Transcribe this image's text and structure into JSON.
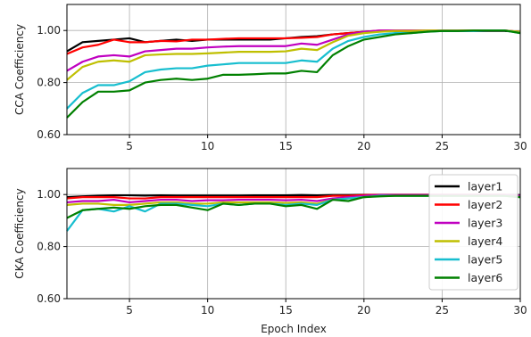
{
  "chart_data": [
    {
      "type": "line",
      "ylabel": "CCA Coefficiency",
      "xlabel": "",
      "xlim": [
        1,
        30
      ],
      "ylim": [
        0.6,
        1.1
      ],
      "grid": true,
      "xticks": [
        "5",
        "10",
        "15",
        "20",
        "25",
        "30"
      ],
      "xtick_values": [
        5,
        10,
        15,
        20,
        25,
        30
      ],
      "yticks": [
        "0.60",
        "0.80",
        "1.00"
      ],
      "ytick_values": [
        0.6,
        0.8,
        1.0
      ],
      "x": [
        1,
        2,
        3,
        4,
        5,
        6,
        7,
        8,
        9,
        10,
        11,
        12,
        13,
        14,
        15,
        16,
        17,
        18,
        19,
        20,
        21,
        22,
        23,
        24,
        25,
        26,
        27,
        28,
        29,
        30
      ],
      "series": [
        {
          "name": "layer1",
          "color": "#000000",
          "values": [
            0.92,
            0.955,
            0.96,
            0.965,
            0.97,
            0.955,
            0.96,
            0.965,
            0.96,
            0.965,
            0.965,
            0.965,
            0.965,
            0.965,
            0.97,
            0.975,
            0.978,
            0.985,
            0.99,
            0.995,
            0.998,
            0.998,
            0.998,
            0.998,
            0.998,
            0.998,
            0.998,
            0.998,
            0.998,
            0.995
          ]
        },
        {
          "name": "layer2",
          "color": "#ff0000",
          "values": [
            0.91,
            0.935,
            0.945,
            0.965,
            0.955,
            0.955,
            0.96,
            0.958,
            0.965,
            0.965,
            0.968,
            0.97,
            0.97,
            0.97,
            0.97,
            0.972,
            0.975,
            0.985,
            0.99,
            0.995,
            1.0,
            1.0,
            1.0,
            1.0,
            1.0,
            1.0,
            1.0,
            1.0,
            1.0,
            0.995
          ]
        },
        {
          "name": "layer3",
          "color": "#c000c0",
          "values": [
            0.845,
            0.88,
            0.9,
            0.905,
            0.9,
            0.92,
            0.925,
            0.93,
            0.93,
            0.935,
            0.938,
            0.94,
            0.94,
            0.94,
            0.94,
            0.95,
            0.945,
            0.965,
            0.985,
            0.995,
            1.0,
            1.0,
            1.0,
            1.0,
            1.0,
            1.0,
            1.0,
            1.0,
            1.0,
            0.995
          ]
        },
        {
          "name": "layer4",
          "color": "#bfbf00",
          "values": [
            0.81,
            0.86,
            0.88,
            0.885,
            0.88,
            0.905,
            0.908,
            0.91,
            0.91,
            0.912,
            0.915,
            0.918,
            0.918,
            0.918,
            0.92,
            0.93,
            0.925,
            0.955,
            0.98,
            0.99,
            0.995,
            0.998,
            0.998,
            1.0,
            1.0,
            1.0,
            1.0,
            1.0,
            1.0,
            0.995
          ]
        },
        {
          "name": "layer5",
          "color": "#17becf",
          "values": [
            0.7,
            0.76,
            0.79,
            0.79,
            0.805,
            0.84,
            0.85,
            0.855,
            0.855,
            0.865,
            0.87,
            0.875,
            0.875,
            0.875,
            0.875,
            0.885,
            0.88,
            0.93,
            0.96,
            0.975,
            0.985,
            0.99,
            0.99,
            0.995,
            0.998,
            0.998,
            0.998,
            1.0,
            1.0,
            0.99
          ]
        },
        {
          "name": "layer6",
          "color": "#008000",
          "values": [
            0.665,
            0.725,
            0.765,
            0.765,
            0.77,
            0.8,
            0.81,
            0.815,
            0.81,
            0.815,
            0.83,
            0.83,
            0.832,
            0.835,
            0.835,
            0.845,
            0.84,
            0.905,
            0.94,
            0.965,
            0.975,
            0.985,
            0.99,
            0.995,
            0.998,
            0.998,
            1.0,
            1.0,
            1.0,
            0.99
          ]
        }
      ]
    },
    {
      "type": "line",
      "ylabel": "CKA Coefficiency",
      "xlabel": "Epoch Index",
      "xlim": [
        1,
        30
      ],
      "ylim": [
        0.6,
        1.1
      ],
      "grid": true,
      "legend": "right",
      "xticks": [
        "5",
        "10",
        "15",
        "20",
        "25",
        "30"
      ],
      "xtick_values": [
        5,
        10,
        15,
        20,
        25,
        30
      ],
      "yticks": [
        "0.60",
        "0.80",
        "1.00"
      ],
      "ytick_values": [
        0.6,
        0.8,
        1.0
      ],
      "x": [
        1,
        2,
        3,
        4,
        5,
        6,
        7,
        8,
        9,
        10,
        11,
        12,
        13,
        14,
        15,
        16,
        17,
        18,
        19,
        20,
        21,
        22,
        23,
        24,
        25,
        26,
        27,
        28,
        29,
        30
      ],
      "series": [
        {
          "name": "layer1",
          "color": "#000000",
          "values": [
            0.99,
            0.993,
            0.995,
            0.997,
            0.997,
            0.996,
            0.997,
            0.996,
            0.996,
            0.996,
            0.996,
            0.996,
            0.997,
            0.997,
            0.997,
            0.998,
            0.997,
            0.998,
            0.998,
            0.999,
            0.999,
            0.999,
            0.999,
            0.999,
            0.999,
            0.999,
            0.999,
            0.999,
            0.999,
            0.998
          ]
        },
        {
          "name": "layer2",
          "color": "#ff0000",
          "values": [
            0.985,
            0.99,
            0.99,
            0.99,
            0.985,
            0.985,
            0.99,
            0.99,
            0.99,
            0.99,
            0.99,
            0.99,
            0.99,
            0.99,
            0.99,
            0.99,
            0.99,
            0.995,
            0.995,
            0.998,
            0.999,
            0.999,
            0.999,
            0.999,
            0.999,
            0.999,
            0.999,
            0.999,
            0.999,
            0.995
          ]
        },
        {
          "name": "layer3",
          "color": "#c000c0",
          "values": [
            0.97,
            0.975,
            0.975,
            0.98,
            0.97,
            0.975,
            0.98,
            0.98,
            0.975,
            0.978,
            0.978,
            0.98,
            0.98,
            0.98,
            0.978,
            0.98,
            0.975,
            0.985,
            0.99,
            0.995,
            0.998,
            0.998,
            0.998,
            0.998,
            0.998,
            0.998,
            0.998,
            0.998,
            0.998,
            0.995
          ]
        },
        {
          "name": "layer4",
          "color": "#bfbf00",
          "values": [
            0.96,
            0.965,
            0.965,
            0.96,
            0.96,
            0.965,
            0.97,
            0.97,
            0.965,
            0.965,
            0.97,
            0.97,
            0.97,
            0.97,
            0.968,
            0.97,
            0.965,
            0.98,
            0.985,
            0.99,
            0.995,
            0.995,
            0.995,
            0.995,
            0.995,
            0.995,
            0.995,
            0.995,
            0.995,
            0.99
          ]
        },
        {
          "name": "layer5",
          "color": "#17becf",
          "values": [
            0.86,
            0.94,
            0.945,
            0.935,
            0.955,
            0.935,
            0.965,
            0.965,
            0.96,
            0.955,
            0.965,
            0.96,
            0.965,
            0.965,
            0.96,
            0.965,
            0.96,
            0.98,
            0.985,
            0.99,
            0.995,
            0.995,
            0.995,
            0.995,
            0.995,
            0.995,
            0.995,
            0.995,
            0.995,
            0.99
          ]
        },
        {
          "name": "layer6",
          "color": "#008000",
          "values": [
            0.91,
            0.94,
            0.945,
            0.95,
            0.945,
            0.955,
            0.96,
            0.96,
            0.95,
            0.94,
            0.965,
            0.96,
            0.965,
            0.965,
            0.955,
            0.96,
            0.945,
            0.98,
            0.975,
            0.99,
            0.993,
            0.995,
            0.995,
            0.995,
            0.995,
            0.995,
            0.995,
            0.995,
            0.995,
            0.99
          ]
        }
      ]
    }
  ]
}
